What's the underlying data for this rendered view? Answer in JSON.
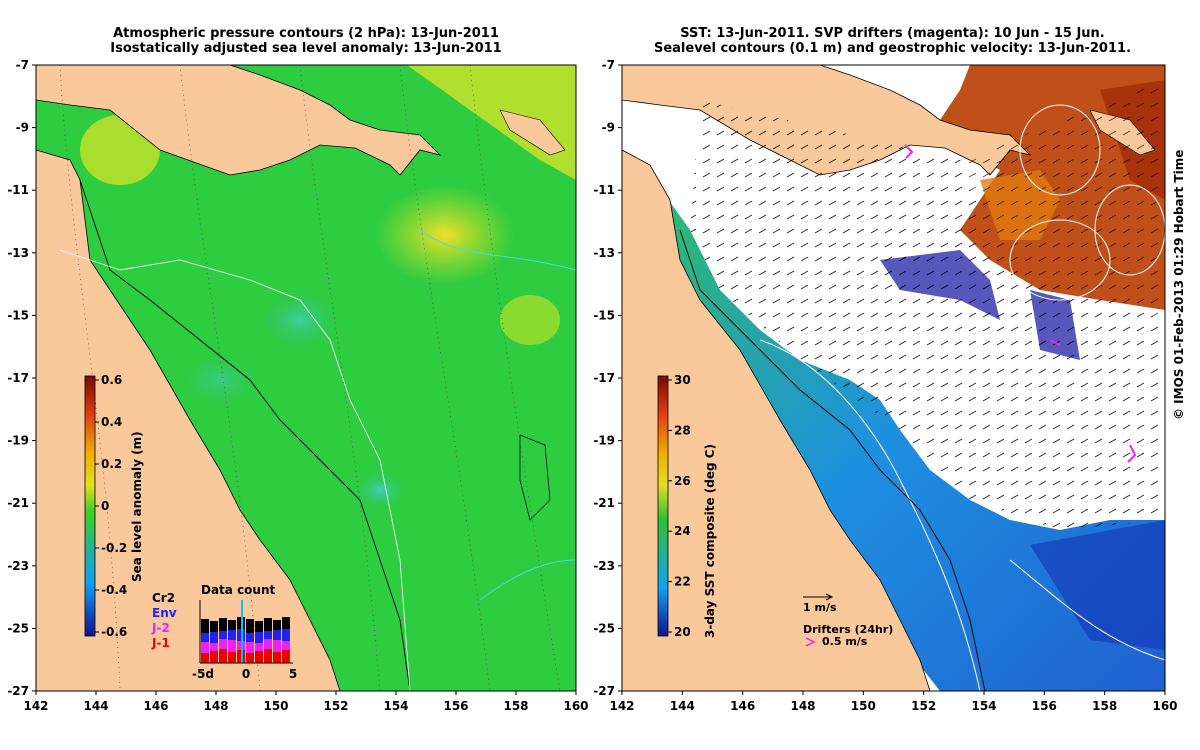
{
  "left_panel": {
    "title_line1": "Atmospheric pressure contours (2 hPa): 13-Jun-2011",
    "title_line2": "Isostatically adjusted sea level anomaly: 13-Jun-2011",
    "colorbar_label": "Sea level anomaly (m)",
    "colorbar_ticks": [
      "0.6",
      "0.4",
      "0.2",
      "0",
      "-0.2",
      "-0.4",
      "-0.6"
    ],
    "satellites": [
      {
        "name": "Cr2",
        "color": "#000000"
      },
      {
        "name": "Env",
        "color": "#2222ee"
      },
      {
        "name": "J-2",
        "color": "#ee22ee"
      },
      {
        "name": "J-1",
        "color": "#ee0000"
      }
    ],
    "data_count": {
      "title": "Data count",
      "ticks": [
        "-5d",
        "0",
        "5"
      ]
    }
  },
  "right_panel": {
    "title_line1": "SST: 13-Jun-2011. SVP drifters (magenta): 10 Jun - 15 Jun.",
    "title_line2": "Sealevel contours (0.1 m) and geostrophic velocity: 13-Jun-2011.",
    "colorbar_label": "3-day SST composite (deg C)",
    "colorbar_ticks": [
      "30",
      "28",
      "26",
      "24",
      "22",
      "20"
    ],
    "velocity_scale": "1 m/s",
    "drifters_label": "Drifters (24hr)",
    "drifter_scale": "0.5 m/s"
  },
  "axes": {
    "lon_ticks": [
      "142",
      "144",
      "146",
      "148",
      "150",
      "152",
      "154",
      "156",
      "158",
      "160"
    ],
    "lat_ticks": [
      "-7",
      "-9",
      "-11",
      "-13",
      "-15",
      "-17",
      "-19",
      "-21",
      "-23",
      "-25",
      "-27"
    ]
  },
  "credit": "© IMOS 01-Feb-2013 01:29 Hobart Time",
  "colors": {
    "land": "#f9c89b",
    "sla_base": "#2ecc40",
    "sla_high": "#c8e22a",
    "sst_warm": "#c0501a",
    "sst_cool": "#1f6fd6"
  }
}
